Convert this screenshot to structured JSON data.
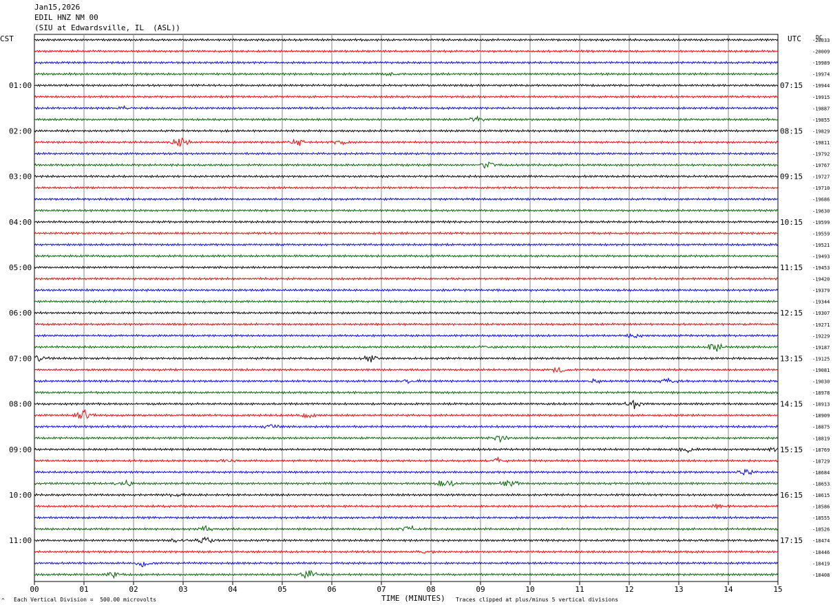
{
  "header": {
    "date": "Jan15,2026",
    "station": "EDIL HNZ NM 00",
    "location": "(SIU at Edwardsville, IL  (ASL))"
  },
  "left_tz": "CST",
  "right_tz": "UTC",
  "dc_label": "DC",
  "footer": {
    "scale_note": "Each Vertical Division =  500.00 microvolts",
    "xlabel": "TIME (MINUTES)",
    "clip_note": "Traces clipped at plus/minus 5 vertical divisions",
    "corner_mark": "^"
  },
  "colors": {
    "trace_cycle": [
      "#000000",
      "#ff0000",
      "#0000ff",
      "#006400"
    ],
    "grid": "#888888"
  },
  "chart_data": {
    "type": "line",
    "title": "",
    "xlabel": "TIME (MINUTES)",
    "xlim": [
      0,
      15
    ],
    "x_ticks": [
      "00",
      "01",
      "02",
      "03",
      "04",
      "05",
      "06",
      "07",
      "08",
      "09",
      "10",
      "11",
      "12",
      "13",
      "14",
      "15"
    ],
    "left_hour_labels": [
      "01:00",
      "02:00",
      "03:00",
      "04:00",
      "05:00",
      "06:00",
      "07:00",
      "08:00",
      "09:00",
      "10:00",
      "11:00"
    ],
    "right_hour_labels": [
      "07:15",
      "08:15",
      "09:15",
      "10:15",
      "11:15",
      "12:15",
      "13:15",
      "14:15",
      "15:15",
      "16:15",
      "17:15"
    ],
    "trace_offsets": [
      -20033,
      -20009,
      -19989,
      -19974,
      -19944,
      -19915,
      -19887,
      -19855,
      -19829,
      -19811,
      -19792,
      -19767,
      -19727,
      -19710,
      -19686,
      -19630,
      -19599,
      -19559,
      -19521,
      -19493,
      -19453,
      -19420,
      -19379,
      -19344,
      -19307,
      -19271,
      -19229,
      -19187,
      -19125,
      -19081,
      -19030,
      -18978,
      -18913,
      -18909,
      -18875,
      -18819,
      -18769,
      -18729,
      -18684,
      -18653,
      -18615,
      -18586,
      -18555,
      -18526,
      -18474,
      -18446,
      -18419,
      -18408
    ],
    "events": [
      {
        "trace": 3,
        "minute": 7.2,
        "amp": 3
      },
      {
        "trace": 6,
        "minute": 1.8,
        "amp": 3
      },
      {
        "trace": 7,
        "minute": 8.9,
        "amp": 4
      },
      {
        "trace": 9,
        "minute": 2.95,
        "amp": 7
      },
      {
        "trace": 9,
        "minute": 5.3,
        "amp": 5
      },
      {
        "trace": 9,
        "minute": 6.15,
        "amp": 4
      },
      {
        "trace": 11,
        "minute": 9.15,
        "amp": 5
      },
      {
        "trace": 26,
        "minute": 12.1,
        "amp": 4
      },
      {
        "trace": 27,
        "minute": 13.75,
        "amp": 7
      },
      {
        "trace": 27,
        "minute": 9.1,
        "amp": 3
      },
      {
        "trace": 28,
        "minute": 6.8,
        "amp": 5
      },
      {
        "trace": 28,
        "minute": 0.1,
        "amp": 5
      },
      {
        "trace": 29,
        "minute": 10.6,
        "amp": 5
      },
      {
        "trace": 30,
        "minute": 7.6,
        "amp": 4
      },
      {
        "trace": 30,
        "minute": 12.8,
        "amp": 4
      },
      {
        "trace": 30,
        "minute": 11.25,
        "amp": 3
      },
      {
        "trace": 32,
        "minute": 12.1,
        "amp": 7
      },
      {
        "trace": 33,
        "minute": 1.0,
        "amp": 7
      },
      {
        "trace": 33,
        "minute": 5.5,
        "amp": 4
      },
      {
        "trace": 34,
        "minute": 4.8,
        "amp": 4
      },
      {
        "trace": 35,
        "minute": 9.4,
        "amp": 5
      },
      {
        "trace": 36,
        "minute": 13.2,
        "amp": 4
      },
      {
        "trace": 36,
        "minute": 15.0,
        "amp": 4
      },
      {
        "trace": 37,
        "minute": 3.9,
        "amp": 3
      },
      {
        "trace": 37,
        "minute": 9.35,
        "amp": 4
      },
      {
        "trace": 38,
        "minute": 14.35,
        "amp": 5
      },
      {
        "trace": 39,
        "minute": 1.8,
        "amp": 5
      },
      {
        "trace": 39,
        "minute": 8.3,
        "amp": 6
      },
      {
        "trace": 39,
        "minute": 9.6,
        "amp": 5
      },
      {
        "trace": 40,
        "minute": 2.8,
        "amp": 3
      },
      {
        "trace": 41,
        "minute": 13.85,
        "amp": 4
      },
      {
        "trace": 43,
        "minute": 7.55,
        "amp": 5
      },
      {
        "trace": 43,
        "minute": 3.45,
        "amp": 4
      },
      {
        "trace": 44,
        "minute": 3.45,
        "amp": 7
      },
      {
        "trace": 44,
        "minute": 2.9,
        "amp": 4
      },
      {
        "trace": 45,
        "minute": 7.9,
        "amp": 3
      },
      {
        "trace": 46,
        "minute": 2.2,
        "amp": 6
      },
      {
        "trace": 47,
        "minute": 5.5,
        "amp": 7
      },
      {
        "trace": 47,
        "minute": 1.6,
        "amp": 4
      }
    ]
  }
}
